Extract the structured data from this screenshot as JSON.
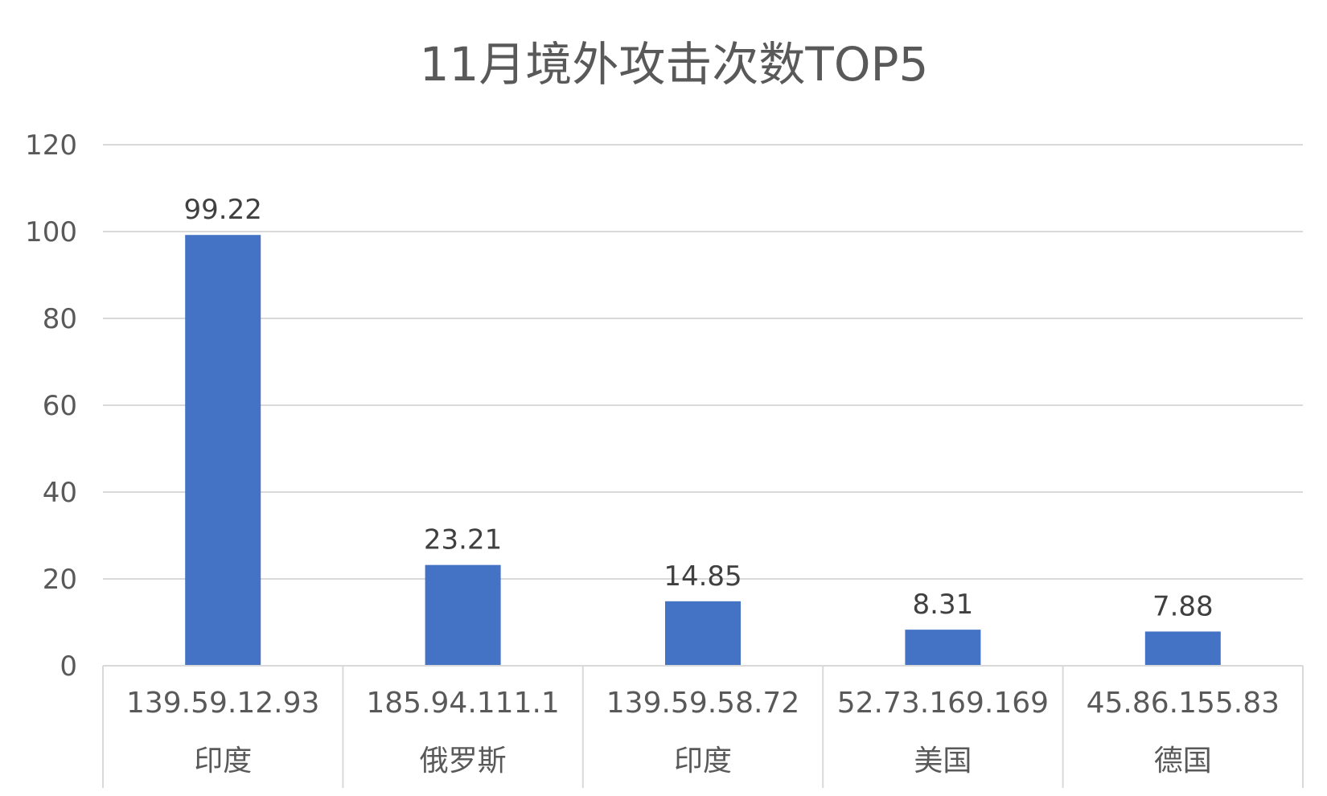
{
  "chart_data": {
    "type": "bar",
    "title": "11月境外攻击次数TOP5",
    "xlabel": "",
    "ylabel": "",
    "ylim": [
      0,
      120
    ],
    "yticks": [
      0,
      20,
      40,
      60,
      80,
      100,
      120
    ],
    "grid": true,
    "legend": "none",
    "bar_color": "#4472C4",
    "categories": [
      {
        "ip": "139.59.12.93",
        "country": "印度"
      },
      {
        "ip": "185.94.111.1",
        "country": "俄罗斯"
      },
      {
        "ip": "139.59.58.72",
        "country": "印度"
      },
      {
        "ip": "52.73.169.169",
        "country": "美国"
      },
      {
        "ip": "45.86.155.83",
        "country": "德国"
      }
    ],
    "values": [
      99.22,
      23.21,
      14.85,
      8.31,
      7.88
    ],
    "value_labels": [
      "99.22",
      "23.21",
      "14.85",
      "8.31",
      "7.88"
    ]
  }
}
